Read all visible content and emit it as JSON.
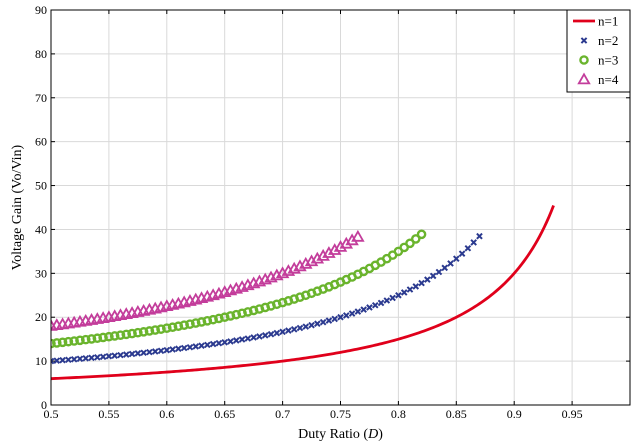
{
  "chart_data": {
    "type": "scatter",
    "xlabel_prefix": "Duty Ratio (",
    "xlabel_var": "D",
    "xlabel_suffix": ")",
    "ylabel": "Voltage Gain (Vo/Vin)",
    "xlim": [
      0.5,
      1.0
    ],
    "ylim": [
      0,
      90
    ],
    "xticks": [
      0.5,
      0.55,
      0.6,
      0.65,
      0.7,
      0.75,
      0.8,
      0.85,
      0.9,
      0.95
    ],
    "xtick_labels": [
      "0.5",
      "0.55",
      "0.6",
      "0.65",
      "0.7",
      "0.75",
      "0.8",
      "0.85",
      "0.9",
      "0.95"
    ],
    "yticks": [
      0,
      10,
      20,
      30,
      40,
      50,
      60,
      70,
      80,
      90
    ],
    "ytick_labels": [
      "0",
      "10",
      "20",
      "30",
      "40",
      "50",
      "60",
      "70",
      "80",
      "90"
    ],
    "grid": true,
    "legend_position": "top-right",
    "relation": "Vo/Vin = (1 + 2n) / (1 - D)",
    "series": [
      {
        "name": "n=1",
        "n": 1,
        "marker": "line",
        "color": "#e0001b",
        "d_start": 0.5,
        "d_end": 0.934,
        "d_step": 0.002
      },
      {
        "name": "n=2",
        "n": 2,
        "marker": "x",
        "color": "#2b3a8f",
        "d_start": 0.5,
        "d_end": 0.872,
        "d_step": 0.005
      },
      {
        "name": "n=3",
        "n": 3,
        "marker": "circle",
        "color": "#6ab42d",
        "d_start": 0.5,
        "d_end": 0.82,
        "d_step": 0.005
      },
      {
        "name": "n=4",
        "n": 4,
        "marker": "triangle",
        "color": "#c33d9b",
        "d_start": 0.5,
        "d_end": 0.765,
        "d_step": 0.005
      }
    ]
  }
}
